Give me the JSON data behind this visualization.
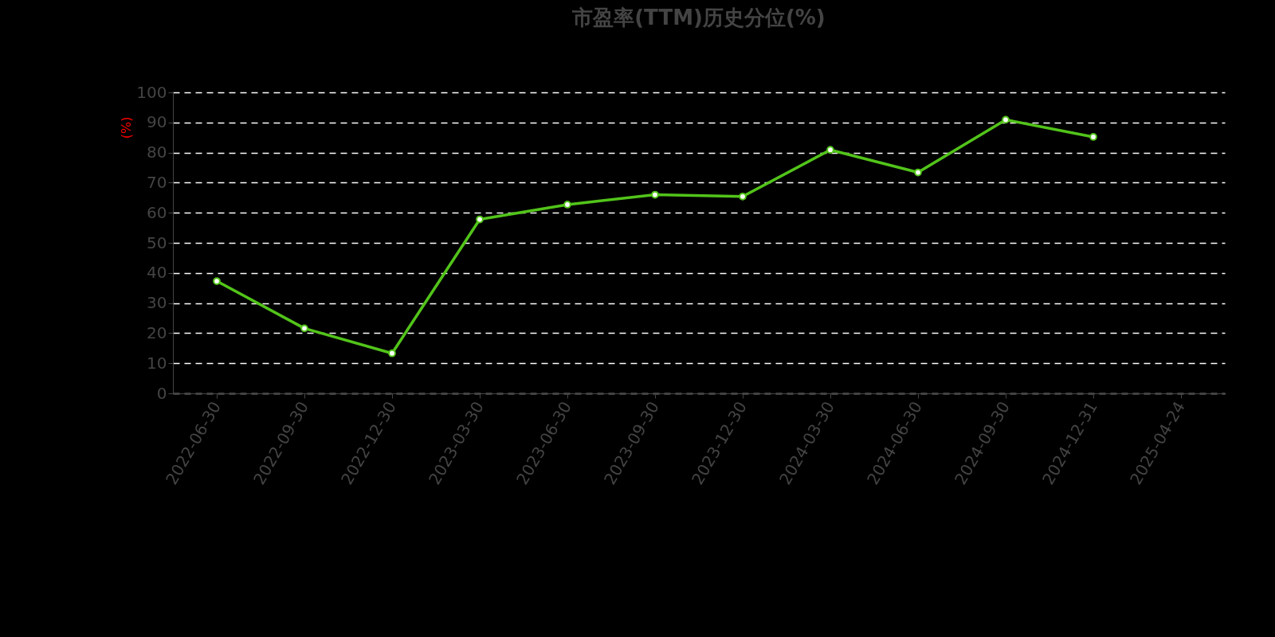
{
  "chart_data": {
    "type": "line",
    "title": "市盈率(TTM)历史分位(%)",
    "ylabel": "(%)",
    "categories": [
      "2022-06-30",
      "2022-09-30",
      "2022-12-30",
      "2023-03-30",
      "2023-06-30",
      "2023-09-30",
      "2023-12-30",
      "2024-03-30",
      "2024-06-30",
      "2024-09-30",
      "2024-12-31",
      "2025-04-24"
    ],
    "series": [
      {
        "color": "#52c41a",
        "values": [
          37.3,
          21.6,
          13.3,
          57.8,
          62.7,
          66.0,
          65.4,
          80.9,
          73.4,
          90.9,
          85.2,
          null
        ]
      }
    ],
    "ylim": [
      0,
      100
    ],
    "yticks": [
      0,
      10,
      20,
      30,
      40,
      50,
      60,
      70,
      80,
      90,
      100
    ],
    "grid": "y",
    "marker": "circle",
    "line_style": "solid",
    "legend": false
  }
}
